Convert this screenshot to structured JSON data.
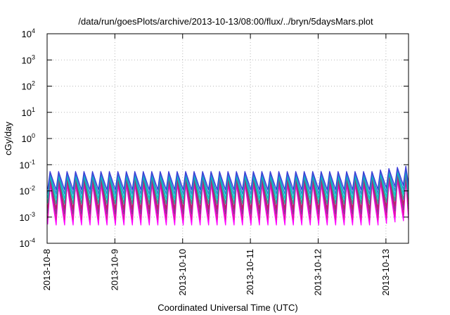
{
  "chart_data": {
    "type": "line",
    "title": "/data/run/goesPlots/archive/2013-10-13/08:00/flux/../bryn/5daysMars.plot",
    "xlabel": "Coordinated Universal Time (UTC)",
    "ylabel": "cGy/day",
    "yscale": "log",
    "ylim": [
      0.0001,
      10000
    ],
    "xlim": [
      "2013-10-08T00:00",
      "2013-10-13T08:00"
    ],
    "grid": true,
    "x_ticks": [
      "2013-10-8",
      "2013-10-9",
      "2013-10-10",
      "2013-10-11",
      "2013-10-12",
      "2013-10-13"
    ],
    "y_ticks": [
      {
        "base": "10",
        "exp": "-4",
        "value": 0.0001
      },
      {
        "base": "10",
        "exp": "-3",
        "value": 0.001
      },
      {
        "base": "10",
        "exp": "-2",
        "value": 0.01
      },
      {
        "base": "10",
        "exp": "-1",
        "value": 0.1
      },
      {
        "base": "10",
        "exp": "0",
        "value": 1
      },
      {
        "base": "10",
        "exp": "1",
        "value": 10
      },
      {
        "base": "10",
        "exp": "2",
        "value": 100
      },
      {
        "base": "10",
        "exp": "3",
        "value": 1000
      },
      {
        "base": "10",
        "exp": "4",
        "value": 10000
      }
    ],
    "sawtooth": {
      "cycles_per_day": 8,
      "num_cycles": 43,
      "end_rise_factor": 1.6
    },
    "series": [
      {
        "color": "#ff00ff",
        "peak": 0.018,
        "trough": 0.0005
      },
      {
        "color": "#e0149f",
        "peak": 0.022,
        "trough": 0.0008
      },
      {
        "color": "#8b2f9a",
        "peak": 0.028,
        "trough": 0.0013
      },
      {
        "color": "#c02060",
        "peak": 0.032,
        "trough": 0.002
      },
      {
        "color": "#1fa89a",
        "peak": 0.036,
        "trough": 0.0032
      },
      {
        "color": "#00c8c8",
        "peak": 0.04,
        "trough": 0.005
      },
      {
        "color": "#2f7fd0",
        "peak": 0.046,
        "trough": 0.0075
      },
      {
        "color": "#3a3ad8",
        "peak": 0.055,
        "trough": 0.011
      }
    ]
  }
}
